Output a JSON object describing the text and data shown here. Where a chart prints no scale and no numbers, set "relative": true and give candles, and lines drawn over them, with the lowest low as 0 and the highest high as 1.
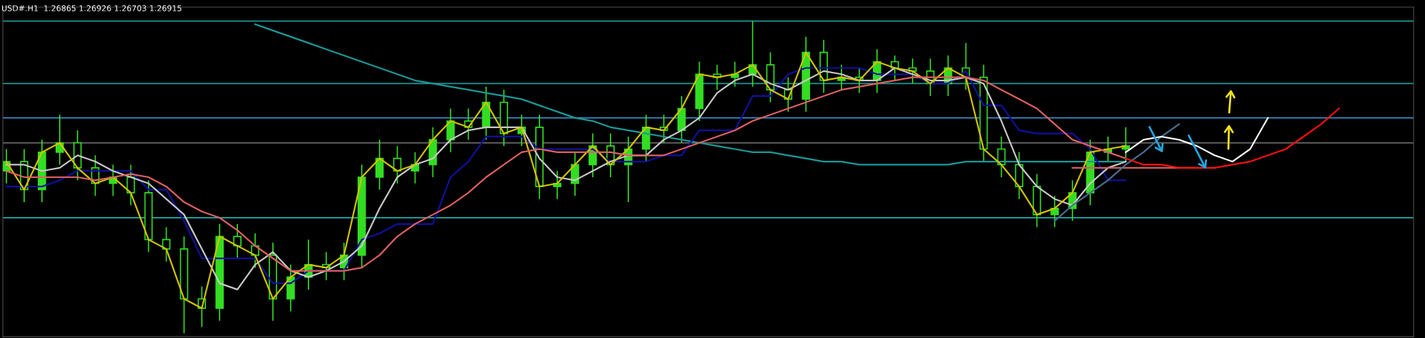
{
  "chart_data": {
    "type": "candlestick",
    "title": "USD#.H1  1.26865 1.26926 1.26703 1.26915",
    "relative": true,
    "color": "#33dd22",
    "categories": [
      null,
      null,
      null,
      null,
      null,
      null,
      null,
      null,
      null,
      null,
      null,
      null,
      null,
      null,
      null,
      null,
      null,
      null,
      null,
      null,
      null,
      null,
      null,
      null,
      null,
      null,
      null,
      null,
      null,
      null,
      null,
      null,
      null,
      null,
      null,
      null,
      null,
      null,
      null,
      null,
      null,
      null,
      null,
      null,
      null,
      null,
      null,
      null,
      null,
      null,
      null,
      null,
      null,
      null,
      null,
      null,
      null,
      null,
      null,
      null,
      null,
      null,
      null,
      null,
      null,
      null,
      null,
      null,
      null,
      null,
      null,
      null,
      null,
      null,
      null,
      null
    ],
    "ohlc": [
      [
        0.52,
        0.59,
        0.48,
        0.55
      ],
      [
        0.55,
        0.59,
        0.42,
        0.46
      ],
      [
        0.46,
        0.62,
        0.42,
        0.58
      ],
      [
        0.58,
        0.7,
        0.54,
        0.61
      ],
      [
        0.61,
        0.65,
        0.49,
        0.53
      ],
      [
        0.53,
        0.57,
        0.44,
        0.48
      ],
      [
        0.48,
        0.54,
        0.44,
        0.5
      ],
      [
        0.5,
        0.54,
        0.41,
        0.45
      ],
      [
        0.45,
        0.49,
        0.26,
        0.3
      ],
      [
        0.3,
        0.34,
        0.23,
        0.27
      ],
      [
        0.27,
        0.31,
        0.0,
        0.11
      ],
      [
        0.11,
        0.15,
        0.02,
        0.08
      ],
      [
        0.08,
        0.35,
        0.04,
        0.31
      ],
      [
        0.31,
        0.35,
        0.24,
        0.28
      ],
      [
        0.28,
        0.32,
        0.21,
        0.25
      ],
      [
        0.25,
        0.29,
        0.04,
        0.11
      ],
      [
        0.11,
        0.22,
        0.07,
        0.18
      ],
      [
        0.18,
        0.3,
        0.14,
        0.22
      ],
      [
        0.22,
        0.26,
        0.17,
        0.21
      ],
      [
        0.21,
        0.29,
        0.17,
        0.25
      ],
      [
        0.25,
        0.54,
        0.21,
        0.5
      ],
      [
        0.5,
        0.62,
        0.46,
        0.56
      ],
      [
        0.56,
        0.6,
        0.48,
        0.52
      ],
      [
        0.52,
        0.58,
        0.48,
        0.54
      ],
      [
        0.54,
        0.66,
        0.5,
        0.62
      ],
      [
        0.62,
        0.72,
        0.58,
        0.68
      ],
      [
        0.68,
        0.72,
        0.62,
        0.66
      ],
      [
        0.66,
        0.79,
        0.62,
        0.74
      ],
      [
        0.74,
        0.78,
        0.6,
        0.64
      ],
      [
        0.64,
        0.7,
        0.6,
        0.66
      ],
      [
        0.66,
        0.7,
        0.43,
        0.47
      ],
      [
        0.47,
        0.52,
        0.43,
        0.48
      ],
      [
        0.48,
        0.58,
        0.44,
        0.54
      ],
      [
        0.54,
        0.64,
        0.5,
        0.6
      ],
      [
        0.6,
        0.64,
        0.5,
        0.54
      ],
      [
        0.54,
        0.63,
        0.42,
        0.59
      ],
      [
        0.59,
        0.7,
        0.55,
        0.66
      ],
      [
        0.66,
        0.7,
        0.61,
        0.65
      ],
      [
        0.65,
        0.76,
        0.61,
        0.72
      ],
      [
        0.72,
        0.87,
        0.68,
        0.83
      ],
      [
        0.83,
        0.86,
        0.78,
        0.82
      ],
      [
        0.82,
        0.87,
        0.79,
        0.83
      ],
      [
        0.83,
        1.0,
        0.79,
        0.86
      ],
      [
        0.86,
        0.9,
        0.74,
        0.78
      ],
      [
        0.78,
        0.82,
        0.71,
        0.75
      ],
      [
        0.75,
        0.95,
        0.71,
        0.9
      ],
      [
        0.9,
        0.94,
        0.77,
        0.81
      ],
      [
        0.81,
        0.86,
        0.78,
        0.82
      ],
      [
        0.82,
        0.85,
        0.77,
        0.81
      ],
      [
        0.81,
        0.91,
        0.77,
        0.87
      ],
      [
        0.87,
        0.89,
        0.81,
        0.85
      ],
      [
        0.85,
        0.88,
        0.8,
        0.84
      ],
      [
        0.84,
        0.88,
        0.76,
        0.8
      ],
      [
        0.8,
        0.89,
        0.76,
        0.85
      ],
      [
        0.85,
        0.93,
        0.78,
        0.82
      ],
      [
        0.82,
        0.86,
        0.55,
        0.59
      ],
      [
        0.59,
        0.63,
        0.5,
        0.54
      ],
      [
        0.54,
        0.58,
        0.43,
        0.47
      ],
      [
        0.47,
        0.51,
        0.34,
        0.38
      ],
      [
        0.38,
        0.44,
        0.34,
        0.4
      ],
      [
        0.4,
        0.49,
        0.36,
        0.45
      ],
      [
        0.45,
        0.62,
        0.41,
        0.58
      ],
      [
        0.58,
        0.63,
        0.55,
        0.59
      ],
      [
        0.59,
        0.66,
        0.55,
        0.6
      ],
      null,
      null,
      null,
      null,
      null,
      null,
      null,
      null,
      null,
      null,
      null,
      null
    ],
    "series": [
      {
        "type": "line",
        "color": "#1a9a9a",
        "values": [
          null,
          null,
          null,
          null,
          null,
          null,
          null,
          null,
          null,
          null,
          null,
          null,
          null,
          null,
          0.99,
          0.97,
          0.95,
          0.93,
          0.91,
          0.89,
          0.87,
          0.85,
          0.83,
          0.81,
          0.8,
          0.79,
          0.78,
          0.77,
          0.76,
          0.75,
          0.73,
          0.71,
          0.69,
          0.68,
          0.66,
          0.65,
          0.64,
          0.63,
          0.62,
          0.61,
          0.6,
          0.59,
          0.58,
          0.58,
          0.57,
          0.56,
          0.55,
          0.55,
          0.54,
          0.54,
          0.54,
          0.54,
          0.54,
          0.54,
          0.55,
          0.55,
          0.55,
          0.55,
          0.55,
          0.55,
          0.55,
          0.55,
          0.55,
          0.55,
          null,
          null,
          null,
          null,
          null,
          null,
          null,
          null,
          null,
          null,
          null,
          null
        ]
      },
      {
        "type": "line",
        "color": "#1010a0",
        "values": [
          0.47,
          0.47,
          0.47,
          0.49,
          0.52,
          0.52,
          0.52,
          0.52,
          0.46,
          0.46,
          0.36,
          0.24,
          0.24,
          0.24,
          0.24,
          0.16,
          0.16,
          0.2,
          0.2,
          0.2,
          0.3,
          0.32,
          0.35,
          0.35,
          0.35,
          0.5,
          0.55,
          0.63,
          0.63,
          0.63,
          0.59,
          0.59,
          0.59,
          0.59,
          0.55,
          0.55,
          0.55,
          0.57,
          0.57,
          0.65,
          0.65,
          0.65,
          0.76,
          0.76,
          0.83,
          0.85,
          0.85,
          0.85,
          0.85,
          0.83,
          0.83,
          0.83,
          0.8,
          0.8,
          0.84,
          0.73,
          0.73,
          0.65,
          0.64,
          0.64,
          0.64,
          0.59,
          0.49,
          0.49,
          null,
          null,
          null,
          null,
          null,
          null,
          null,
          null,
          null,
          null,
          null,
          null
        ]
      },
      {
        "type": "line",
        "color": "#c8c8c8",
        "values": [
          0.54,
          0.54,
          0.52,
          0.53,
          0.57,
          0.55,
          0.52,
          0.5,
          0.48,
          0.43,
          0.38,
          0.27,
          0.16,
          0.14,
          0.22,
          0.26,
          0.2,
          0.18,
          0.2,
          0.23,
          0.28,
          0.4,
          0.5,
          0.54,
          0.56,
          0.62,
          0.65,
          0.66,
          0.66,
          0.66,
          0.56,
          0.5,
          0.49,
          0.52,
          0.55,
          0.57,
          0.57,
          0.62,
          0.65,
          0.69,
          0.77,
          0.81,
          0.83,
          0.8,
          0.78,
          0.81,
          0.84,
          0.83,
          0.81,
          0.81,
          0.85,
          0.83,
          0.81,
          0.81,
          0.82,
          0.8,
          0.68,
          0.54,
          0.47,
          0.43,
          0.41,
          0.48,
          0.53,
          0.55,
          null,
          null,
          null,
          null,
          null,
          null,
          null,
          null,
          null,
          null,
          null,
          null
        ]
      },
      {
        "type": "line",
        "color": "#d4c000",
        "values": [
          0.55,
          0.46,
          0.58,
          0.61,
          0.53,
          0.48,
          0.5,
          0.45,
          0.3,
          0.27,
          0.11,
          0.08,
          0.31,
          0.28,
          0.25,
          0.11,
          0.18,
          0.22,
          0.21,
          0.25,
          0.5,
          0.56,
          0.52,
          0.54,
          0.62,
          0.68,
          0.66,
          0.74,
          0.64,
          0.66,
          0.47,
          0.48,
          0.54,
          0.6,
          0.54,
          0.59,
          0.66,
          0.65,
          0.72,
          0.83,
          0.82,
          0.83,
          0.86,
          0.78,
          0.75,
          0.9,
          0.81,
          0.82,
          0.81,
          0.87,
          0.85,
          0.84,
          0.8,
          0.85,
          0.82,
          0.59,
          0.54,
          0.47,
          0.38,
          0.4,
          0.45,
          0.58,
          0.59,
          0.6,
          null,
          null,
          null,
          null,
          null,
          null,
          null,
          null,
          null,
          null,
          null,
          null
        ]
      },
      {
        "type": "line",
        "color": "#e06060",
        "values": [
          0.52,
          0.5,
          0.5,
          0.5,
          0.5,
          0.49,
          0.5,
          0.51,
          0.5,
          0.47,
          0.42,
          0.39,
          0.37,
          0.33,
          0.28,
          0.24,
          0.2,
          0.2,
          0.2,
          0.2,
          0.21,
          0.25,
          0.31,
          0.35,
          0.38,
          0.41,
          0.45,
          0.5,
          0.54,
          0.58,
          0.59,
          0.58,
          0.58,
          0.58,
          0.58,
          0.57,
          0.57,
          0.57,
          0.59,
          0.61,
          0.63,
          0.65,
          0.68,
          0.7,
          0.72,
          0.74,
          0.76,
          0.78,
          0.79,
          0.8,
          0.81,
          0.82,
          0.82,
          0.82,
          0.82,
          0.81,
          0.78,
          0.75,
          0.72,
          0.67,
          0.62,
          0.6,
          0.58,
          0.56,
          null,
          null,
          null,
          null,
          null,
          null,
          null,
          null,
          null,
          null,
          null,
          null
        ]
      },
      {
        "type": "line",
        "color": "#d06060",
        "values": [
          null,
          null,
          null,
          null,
          null,
          null,
          null,
          null,
          null,
          null,
          null,
          null,
          null,
          null,
          null,
          null,
          null,
          null,
          null,
          null,
          null,
          null,
          null,
          null,
          null,
          null,
          null,
          null,
          null,
          null,
          null,
          null,
          null,
          null,
          null,
          null,
          null,
          null,
          null,
          null,
          null,
          null,
          null,
          null,
          null,
          null,
          null,
          null,
          null,
          null,
          null,
          null,
          null,
          null,
          null,
          null,
          null,
          null,
          null,
          null,
          0.53,
          0.53,
          0.53,
          0.53,
          0.53,
          0.53,
          0.53,
          0.53,
          null,
          null,
          null,
          null,
          null,
          null,
          null,
          null
        ]
      },
      {
        "type": "line",
        "color": "#4a7090",
        "values": [
          null,
          null,
          null,
          null,
          null,
          null,
          null,
          null,
          null,
          null,
          null,
          null,
          null,
          null,
          null,
          null,
          null,
          null,
          null,
          null,
          null,
          null,
          null,
          null,
          null,
          null,
          null,
          null,
          null,
          null,
          null,
          null,
          null,
          null,
          null,
          null,
          null,
          null,
          null,
          null,
          null,
          null,
          null,
          null,
          null,
          null,
          null,
          null,
          null,
          null,
          null,
          null,
          null,
          null,
          null,
          null,
          null,
          null,
          null,
          0.36,
          0.41,
          0.45,
          0.49,
          0.54,
          0.58,
          0.63,
          0.67,
          null,
          null,
          null,
          null,
          null,
          null,
          null,
          null,
          null
        ]
      },
      {
        "type": "line",
        "color": "#ff1010",
        "values": [
          null,
          null,
          null,
          null,
          null,
          null,
          null,
          null,
          null,
          null,
          null,
          null,
          null,
          null,
          null,
          null,
          null,
          null,
          null,
          null,
          null,
          null,
          null,
          null,
          null,
          null,
          null,
          null,
          null,
          null,
          null,
          null,
          null,
          null,
          null,
          null,
          null,
          null,
          null,
          null,
          null,
          null,
          null,
          null,
          null,
          null,
          null,
          null,
          null,
          null,
          null,
          null,
          null,
          null,
          null,
          null,
          null,
          null,
          null,
          null,
          null,
          null,
          null,
          0.56,
          0.54,
          0.54,
          0.53,
          0.53,
          0.53,
          0.54,
          0.55,
          0.57,
          0.59,
          0.63,
          0.67,
          0.72
        ]
      },
      {
        "type": "line",
        "color": "#ffffff",
        "values": [
          null,
          null,
          null,
          null,
          null,
          null,
          null,
          null,
          null,
          null,
          null,
          null,
          null,
          null,
          null,
          null,
          null,
          null,
          null,
          null,
          null,
          null,
          null,
          null,
          null,
          null,
          null,
          null,
          null,
          null,
          null,
          null,
          null,
          null,
          null,
          null,
          null,
          null,
          null,
          null,
          null,
          null,
          null,
          null,
          null,
          null,
          null,
          null,
          null,
          null,
          null,
          null,
          null,
          null,
          null,
          null,
          null,
          null,
          null,
          null,
          null,
          null,
          null,
          0.58,
          0.62,
          0.63,
          0.62,
          0.6,
          0.57,
          0.55,
          0.59,
          0.69,
          null,
          null,
          null,
          null
        ]
      }
    ],
    "ref_lines": [
      {
        "axis": "y",
        "value": 1.0,
        "color": "#1a9a9a"
      },
      {
        "axis": "y",
        "value": 0.8,
        "color": "#1a9a9a"
      },
      {
        "axis": "y",
        "value": 0.69,
        "color": "#3a8fc8"
      },
      {
        "axis": "y",
        "value": 0.61,
        "color": "#606060"
      },
      {
        "axis": "y",
        "value": 0.37,
        "color": "#1a9a9a"
      }
    ]
  }
}
